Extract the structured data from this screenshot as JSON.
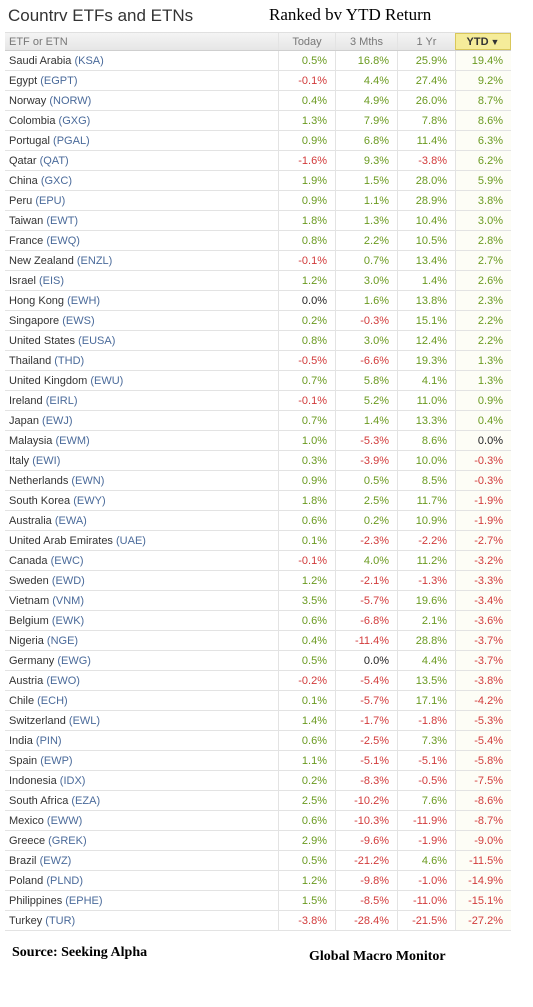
{
  "title": "Countrv ETFs and ETNs",
  "subtitle": "Ranked bv YTD Return",
  "source": "Source:  Seeking Alpha",
  "credit": "Global Macro Monitor",
  "chart_data": {
    "type": "table",
    "columns": [
      "ETF or ETN",
      "Today",
      "3 Mths",
      "1 Yr",
      "YTD"
    ],
    "sort_column": "YTD",
    "sort_indicator": "triangle-down-icon",
    "colors": {
      "positive": "#6a9a1f",
      "negative": "#d23a3a",
      "ticker": "#4a6a9a",
      "sorted_header": "#f5ec9a"
    },
    "rows": [
      {
        "country": "Saudi Arabia",
        "ticker": "(KSA)",
        "today": "0.5%",
        "m3": "16.8%",
        "y1": "25.9%",
        "ytd": "19.4%"
      },
      {
        "country": "Egypt",
        "ticker": "(EGPT)",
        "today": "-0.1%",
        "m3": "4.4%",
        "y1": "27.4%",
        "ytd": "9.2%"
      },
      {
        "country": "Norway",
        "ticker": "(NORW)",
        "today": "0.4%",
        "m3": "4.9%",
        "y1": "26.0%",
        "ytd": "8.7%"
      },
      {
        "country": "Colombia",
        "ticker": "(GXG)",
        "today": "1.3%",
        "m3": "7.9%",
        "y1": "7.8%",
        "ytd": "8.6%"
      },
      {
        "country": "Portugal",
        "ticker": "(PGAL)",
        "today": "0.9%",
        "m3": "6.8%",
        "y1": "11.4%",
        "ytd": "6.3%"
      },
      {
        "country": "Qatar",
        "ticker": "(QAT)",
        "today": "-1.6%",
        "m3": "9.3%",
        "y1": "-3.8%",
        "ytd": "6.2%"
      },
      {
        "country": "China",
        "ticker": "(GXC)",
        "today": "1.9%",
        "m3": "1.5%",
        "y1": "28.0%",
        "ytd": "5.9%"
      },
      {
        "country": "Peru",
        "ticker": "(EPU)",
        "today": "0.9%",
        "m3": "1.1%",
        "y1": "28.9%",
        "ytd": "3.8%"
      },
      {
        "country": "Taiwan",
        "ticker": "(EWT)",
        "today": "1.8%",
        "m3": "1.3%",
        "y1": "10.4%",
        "ytd": "3.0%"
      },
      {
        "country": "France",
        "ticker": "(EWQ)",
        "today": "0.8%",
        "m3": "2.2%",
        "y1": "10.5%",
        "ytd": "2.8%"
      },
      {
        "country": "New Zealand",
        "ticker": "(ENZL)",
        "today": "-0.1%",
        "m3": "0.7%",
        "y1": "13.4%",
        "ytd": "2.7%"
      },
      {
        "country": "Israel",
        "ticker": "(EIS)",
        "today": "1.2%",
        "m3": "3.0%",
        "y1": "1.4%",
        "ytd": "2.6%"
      },
      {
        "country": "Hong Kong",
        "ticker": "(EWH)",
        "today": "0.0%",
        "m3": "1.6%",
        "y1": "13.8%",
        "ytd": "2.3%"
      },
      {
        "country": "Singapore",
        "ticker": "(EWS)",
        "today": "0.2%",
        "m3": "-0.3%",
        "y1": "15.1%",
        "ytd": "2.2%"
      },
      {
        "country": "United States",
        "ticker": "(EUSA)",
        "today": "0.8%",
        "m3": "3.0%",
        "y1": "12.4%",
        "ytd": "2.2%"
      },
      {
        "country": "Thailand",
        "ticker": "(THD)",
        "today": "-0.5%",
        "m3": "-6.6%",
        "y1": "19.3%",
        "ytd": "1.3%"
      },
      {
        "country": "United Kingdom",
        "ticker": "(EWU)",
        "today": "0.7%",
        "m3": "5.8%",
        "y1": "4.1%",
        "ytd": "1.3%"
      },
      {
        "country": "Ireland",
        "ticker": "(EIRL)",
        "today": "-0.1%",
        "m3": "5.2%",
        "y1": "11.0%",
        "ytd": "0.9%"
      },
      {
        "country": "Japan",
        "ticker": "(EWJ)",
        "today": "0.7%",
        "m3": "1.4%",
        "y1": "13.3%",
        "ytd": "0.4%"
      },
      {
        "country": "Malaysia",
        "ticker": "(EWM)",
        "today": "1.0%",
        "m3": "-5.3%",
        "y1": "8.6%",
        "ytd": "0.0%"
      },
      {
        "country": "Italy",
        "ticker": "(EWI)",
        "today": "0.3%",
        "m3": "-3.9%",
        "y1": "10.0%",
        "ytd": "-0.3%"
      },
      {
        "country": "Netherlands",
        "ticker": "(EWN)",
        "today": "0.9%",
        "m3": "0.5%",
        "y1": "8.5%",
        "ytd": "-0.3%"
      },
      {
        "country": "South Korea",
        "ticker": "(EWY)",
        "today": "1.8%",
        "m3": "2.5%",
        "y1": "11.7%",
        "ytd": "-1.9%"
      },
      {
        "country": "Australia",
        "ticker": "(EWA)",
        "today": "0.6%",
        "m3": "0.2%",
        "y1": "10.9%",
        "ytd": "-1.9%"
      },
      {
        "country": "United Arab Emirates",
        "ticker": "(UAE)",
        "today": "0.1%",
        "m3": "-2.3%",
        "y1": "-2.2%",
        "ytd": "-2.7%"
      },
      {
        "country": "Canada",
        "ticker": "(EWC)",
        "today": "-0.1%",
        "m3": "4.0%",
        "y1": "11.2%",
        "ytd": "-3.2%"
      },
      {
        "country": "Sweden",
        "ticker": "(EWD)",
        "today": "1.2%",
        "m3": "-2.1%",
        "y1": "-1.3%",
        "ytd": "-3.3%"
      },
      {
        "country": "Vietnam",
        "ticker": "(VNM)",
        "today": "3.5%",
        "m3": "-5.7%",
        "y1": "19.6%",
        "ytd": "-3.4%"
      },
      {
        "country": "Belgium",
        "ticker": "(EWK)",
        "today": "0.6%",
        "m3": "-6.8%",
        "y1": "2.1%",
        "ytd": "-3.6%"
      },
      {
        "country": "Nigeria",
        "ticker": "(NGE)",
        "today": "0.4%",
        "m3": "-11.4%",
        "y1": "28.8%",
        "ytd": "-3.7%"
      },
      {
        "country": "Germany",
        "ticker": "(EWG)",
        "today": "0.5%",
        "m3": "0.0%",
        "y1": "4.4%",
        "ytd": "-3.7%"
      },
      {
        "country": "Austria",
        "ticker": "(EWO)",
        "today": "-0.2%",
        "m3": "-5.4%",
        "y1": "13.5%",
        "ytd": "-3.8%"
      },
      {
        "country": "Chile",
        "ticker": "(ECH)",
        "today": "0.1%",
        "m3": "-5.7%",
        "y1": "17.1%",
        "ytd": "-4.2%"
      },
      {
        "country": "Switzerland",
        "ticker": "(EWL)",
        "today": "1.4%",
        "m3": "-1.7%",
        "y1": "-1.8%",
        "ytd": "-5.3%"
      },
      {
        "country": "India",
        "ticker": "(PIN)",
        "today": "0.6%",
        "m3": "-2.5%",
        "y1": "7.3%",
        "ytd": "-5.4%"
      },
      {
        "country": "Spain",
        "ticker": "(EWP)",
        "today": "1.1%",
        "m3": "-5.1%",
        "y1": "-5.1%",
        "ytd": "-5.8%"
      },
      {
        "country": "Indonesia",
        "ticker": "(IDX)",
        "today": "0.2%",
        "m3": "-8.3%",
        "y1": "-0.5%",
        "ytd": "-7.5%"
      },
      {
        "country": "South Africa",
        "ticker": "(EZA)",
        "today": "2.5%",
        "m3": "-10.2%",
        "y1": "7.6%",
        "ytd": "-8.6%"
      },
      {
        "country": "Mexico",
        "ticker": "(EWW)",
        "today": "0.6%",
        "m3": "-10.3%",
        "y1": "-11.9%",
        "ytd": "-8.7%"
      },
      {
        "country": "Greece",
        "ticker": "(GREK)",
        "today": "2.9%",
        "m3": "-9.6%",
        "y1": "-1.9%",
        "ytd": "-9.0%"
      },
      {
        "country": "Brazil",
        "ticker": "(EWZ)",
        "today": "0.5%",
        "m3": "-21.2%",
        "y1": "4.6%",
        "ytd": "-11.5%"
      },
      {
        "country": "Poland",
        "ticker": "(PLND)",
        "today": "1.2%",
        "m3": "-9.8%",
        "y1": "-1.0%",
        "ytd": "-14.9%"
      },
      {
        "country": "Philippines",
        "ticker": "(EPHE)",
        "today": "1.5%",
        "m3": "-8.5%",
        "y1": "-11.0%",
        "ytd": "-15.1%"
      },
      {
        "country": "Turkey",
        "ticker": "(TUR)",
        "today": "-3.8%",
        "m3": "-28.4%",
        "y1": "-21.5%",
        "ytd": "-27.2%"
      }
    ]
  }
}
